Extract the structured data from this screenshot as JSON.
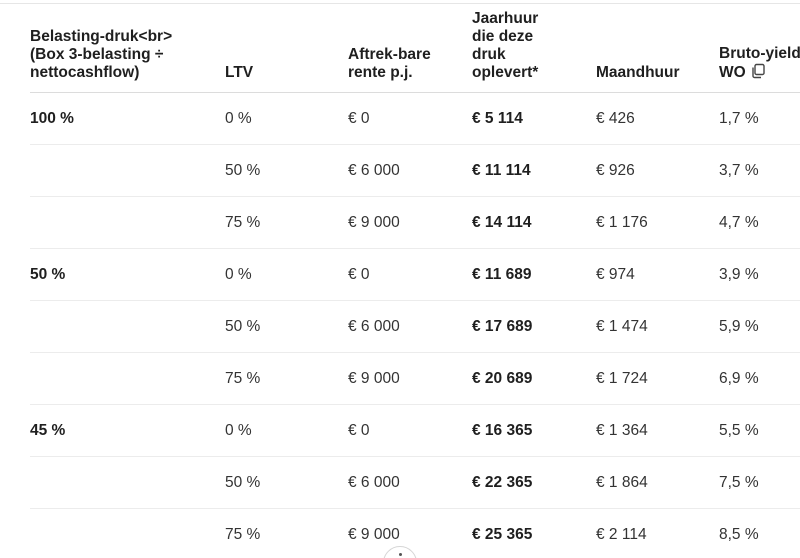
{
  "headers": {
    "burden_lines": [
      "Belasting-druk<br>",
      "(Box 3-belasting ÷",
      "nettocashflow)"
    ],
    "ltv": "LTV",
    "interest_lines": [
      "Aftrek-bare",
      "rente p.j."
    ],
    "annual_rent_lines": [
      "Jaarhuur",
      "die deze",
      "druk",
      "oplevert*"
    ],
    "monthly_rent": "Maandhuur",
    "gross_yield_lines": [
      "Bruto-yield",
      "WO"
    ]
  },
  "rows": [
    {
      "burden": "100 %",
      "ltv": "0 %",
      "interest": "€ 0",
      "annual_rent": "€ 5 114",
      "monthly_rent": "€  426",
      "gross_yield": "1,7 %"
    },
    {
      "burden": "",
      "ltv": "50 %",
      "interest": "€ 6 000",
      "annual_rent": "€ 11 114",
      "monthly_rent": "€  926",
      "gross_yield": "3,7 %"
    },
    {
      "burden": "",
      "ltv": "75 %",
      "interest": "€ 9 000",
      "annual_rent": "€ 14 114",
      "monthly_rent": "€ 1 176",
      "gross_yield": "4,7 %"
    },
    {
      "burden": "50 %",
      "ltv": "0 %",
      "interest": "€ 0",
      "annual_rent": "€ 11 689",
      "monthly_rent": "€  974",
      "gross_yield": "3,9 %"
    },
    {
      "burden": "",
      "ltv": "50 %",
      "interest": "€ 6 000",
      "annual_rent": "€ 17 689",
      "monthly_rent": "€ 1 474",
      "gross_yield": "5,9 %"
    },
    {
      "burden": "",
      "ltv": "75 %",
      "interest": "€ 9 000",
      "annual_rent": "€ 20 689",
      "monthly_rent": "€ 1 724",
      "gross_yield": "6,9 %"
    },
    {
      "burden": "45 %",
      "ltv": "0 %",
      "interest": "€ 0",
      "annual_rent": "€ 16 365",
      "monthly_rent": "€ 1 364",
      "gross_yield": "5,5 %"
    },
    {
      "burden": "",
      "ltv": "50 %",
      "interest": "€ 6 000",
      "annual_rent": "€ 22 365",
      "monthly_rent": "€ 1 864",
      "gross_yield": "7,5 %"
    },
    {
      "burden": "",
      "ltv": "75 %",
      "interest": "€ 9 000",
      "annual_rent": "€ 25 365",
      "monthly_rent": "€ 2 114",
      "gross_yield": "8,5 %"
    }
  ],
  "icons": {
    "copy": "copy-icon",
    "scroll": "scroll-down-icon"
  }
}
